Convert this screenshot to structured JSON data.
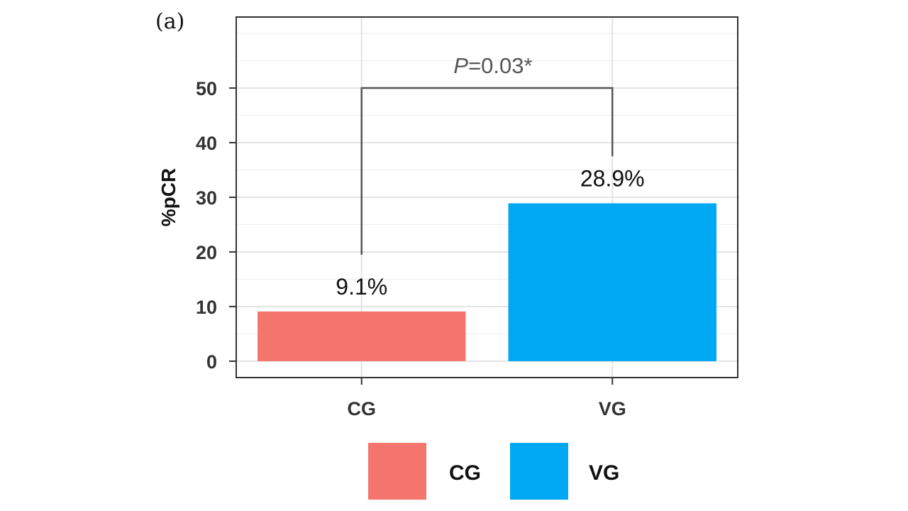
{
  "panel_label": "(a)",
  "chart_data": {
    "type": "bar",
    "categories": [
      "CG",
      "VG"
    ],
    "values": [
      9.1,
      28.9
    ],
    "data_labels": [
      "9.1%",
      "28.9%"
    ],
    "colors": [
      "#f4756c",
      "#00a8f3"
    ],
    "title": "",
    "xlabel": "",
    "ylabel": "%pCR",
    "ylim": [
      -3,
      63
    ],
    "yticks": [
      0,
      10,
      20,
      30,
      40,
      50
    ],
    "ytick_labels": [
      "0",
      "10",
      "20",
      "30",
      "40",
      "50"
    ],
    "grid": true,
    "legend": {
      "placement": "bottom",
      "entries": [
        {
          "label": "CG",
          "color": "#f4756c"
        },
        {
          "label": "VG",
          "color": "#00a8f3"
        }
      ]
    },
    "annotation": {
      "p_symbol": "P",
      "p_rest": "=0.03*",
      "bracket_y": 50,
      "bracket_ends": [
        19.5,
        37.5
      ]
    }
  }
}
